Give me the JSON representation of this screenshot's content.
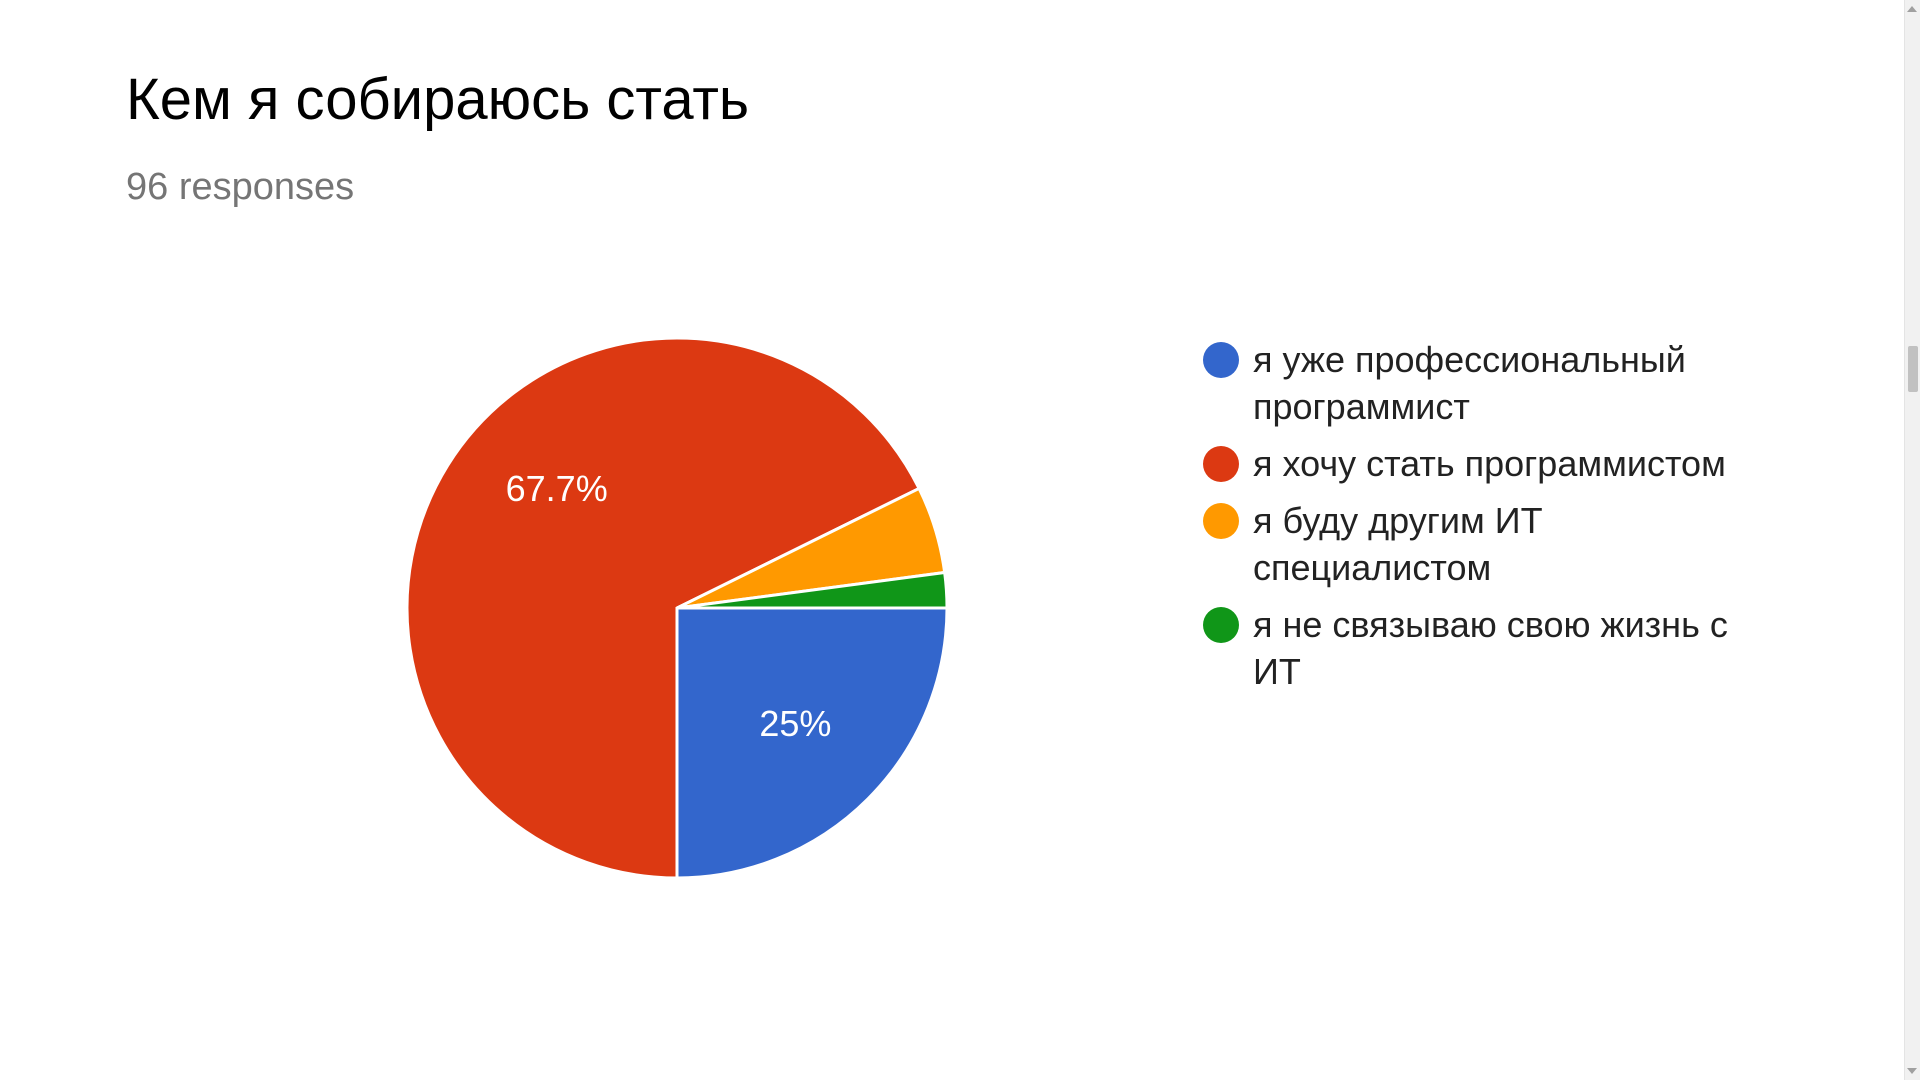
{
  "header": {
    "title": "Кем я собираюсь стать",
    "responses": "96 responses"
  },
  "chart_data": {
    "type": "pie",
    "title": "Кем я собираюсь стать",
    "subtitle": "96 responses",
    "legend_position": "right",
    "slices": [
      {
        "label": "я уже профессиональный программист",
        "value": 25.0,
        "data_label": "25%",
        "color": "#3366cc"
      },
      {
        "label": "я хочу стать программистом",
        "value": 67.7,
        "data_label": "67.7%",
        "color": "#dc3912"
      },
      {
        "label": "я буду другим ИТ специалистом",
        "value": 5.2,
        "data_label": "",
        "color": "#ff9900"
      },
      {
        "label": "я не связываю свою жизнь с ИТ",
        "value": 2.1,
        "data_label": "",
        "color": "#109618"
      }
    ]
  }
}
